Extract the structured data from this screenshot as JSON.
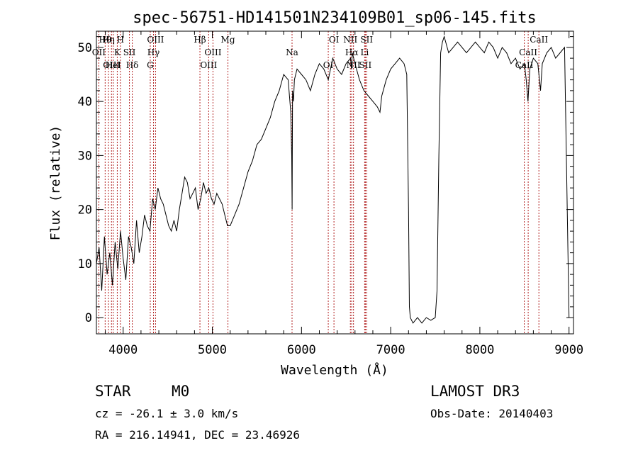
{
  "chart_data": {
    "type": "line",
    "title": "spec-56751-HD141501N234109B01_sp06-145.fits",
    "xlabel": "Wavelength (Å)",
    "ylabel": "Flux (relative)",
    "xlim": [
      3700,
      9050
    ],
    "ylim": [
      -3,
      53
    ],
    "xticks": [
      4000,
      5000,
      6000,
      7000,
      8000,
      9000
    ],
    "yticks": [
      0,
      10,
      20,
      30,
      40,
      50
    ],
    "grid": false,
    "series": [
      {
        "name": "spectrum",
        "x": [
          3700,
          3730,
          3760,
          3790,
          3820,
          3850,
          3880,
          3910,
          3940,
          3970,
          4000,
          4030,
          4060,
          4090,
          4120,
          4150,
          4180,
          4210,
          4240,
          4270,
          4300,
          4330,
          4360,
          4390,
          4420,
          4450,
          4480,
          4510,
          4540,
          4570,
          4600,
          4630,
          4660,
          4690,
          4720,
          4750,
          4780,
          4810,
          4840,
          4870,
          4900,
          4930,
          4960,
          4990,
          5020,
          5050,
          5080,
          5110,
          5140,
          5170,
          5200,
          5250,
          5300,
          5350,
          5400,
          5450,
          5500,
          5550,
          5600,
          5650,
          5700,
          5750,
          5800,
          5850,
          5880,
          5890,
          5895,
          5900,
          5910,
          5920,
          5950,
          6000,
          6050,
          6100,
          6150,
          6200,
          6250,
          6300,
          6350,
          6400,
          6450,
          6500,
          6550,
          6560,
          6570,
          6600,
          6650,
          6700,
          6750,
          6800,
          6850,
          6880,
          6900,
          6950,
          7000,
          7050,
          7100,
          7150,
          7180,
          7200,
          7210,
          7220,
          7250,
          7300,
          7350,
          7400,
          7450,
          7500,
          7520,
          7540,
          7560,
          7580,
          7600,
          7650,
          7700,
          7750,
          7800,
          7850,
          7900,
          7950,
          8000,
          8050,
          8100,
          8150,
          8200,
          8250,
          8300,
          8350,
          8400,
          8450,
          8500,
          8520,
          8540,
          8560,
          8600,
          8650,
          8680,
          8700,
          8750,
          8800,
          8850,
          8900,
          8950,
          9000
        ],
        "values": [
          10,
          13,
          5,
          15,
          8,
          12,
          6,
          14,
          9,
          16,
          11,
          7,
          15,
          13,
          10,
          18,
          12,
          15,
          19,
          17,
          16,
          22,
          20,
          24,
          22,
          21,
          19,
          17,
          16,
          18,
          16,
          20,
          23,
          26,
          25,
          22,
          23,
          24,
          20,
          22,
          25,
          23,
          24,
          22,
          21,
          23,
          22,
          21,
          19,
          17,
          17,
          19,
          21,
          24,
          27,
          29,
          32,
          33,
          35,
          37,
          40,
          42,
          45,
          44,
          38,
          30,
          20,
          42,
          40,
          44,
          46,
          45,
          44,
          42,
          45,
          47,
          46,
          44,
          48,
          46,
          45,
          47,
          48,
          46,
          49,
          47,
          44,
          42,
          41,
          40,
          39,
          38,
          41,
          44,
          46,
          47,
          48,
          47,
          45,
          20,
          2,
          0,
          -1,
          0,
          -1,
          0,
          -0.5,
          0,
          5,
          30,
          49,
          51,
          52,
          49,
          50,
          51,
          50,
          49,
          50,
          51,
          50,
          49,
          51,
          50,
          48,
          50,
          49,
          47,
          48,
          46,
          47,
          44,
          40,
          46,
          48,
          47,
          42,
          47,
          49,
          50,
          48,
          49,
          50,
          0
        ]
      }
    ],
    "line_markers": [
      {
        "label": "Hθ",
        "x": 3798
      },
      {
        "label": "OII",
        "x": 3727
      },
      {
        "label": "OIII",
        "x": 3869
      },
      {
        "label": "Hη",
        "x": 3835
      },
      {
        "label": "K",
        "x": 3934
      },
      {
        "label": "HeI",
        "x": 3889
      },
      {
        "label": "H",
        "x": 3969
      },
      {
        "label": "SII",
        "x": 4070
      },
      {
        "label": "Hδ",
        "x": 4102
      },
      {
        "label": "OIII",
        "x": 4363
      },
      {
        "label": "Hγ",
        "x": 4340
      },
      {
        "label": "G",
        "x": 4304
      },
      {
        "label": "Hβ",
        "x": 4861
      },
      {
        "label": "OIII",
        "x": 5007
      },
      {
        "label": "OIII",
        "x": 4959
      },
      {
        "label": "Mg",
        "x": 5175
      },
      {
        "label": "Na",
        "x": 5894
      },
      {
        "label": "OI",
        "x": 6300
      },
      {
        "label": "OI",
        "x": 6364
      },
      {
        "label": "Hα",
        "x": 6563
      },
      {
        "label": "SII",
        "x": 6716
      },
      {
        "label": "NII",
        "x": 6548
      },
      {
        "label": "Li",
        "x": 6708
      },
      {
        "label": "NII",
        "x": 6583
      },
      {
        "label": "SII",
        "x": 6731
      },
      {
        "label": "CaII",
        "x": 8542
      },
      {
        "label": "CaII",
        "x": 8498
      },
      {
        "label": "CaII",
        "x": 8662
      }
    ]
  },
  "info": {
    "object_type": "STAR",
    "subclass": "M0",
    "survey": "LAMOST DR3",
    "redshift_line": "cz = -26.1 ± 3.0 km/s",
    "obs_date_line": "Obs-Date: 20140403",
    "coords_line": "RA = 216.14941, DEC =  23.46926"
  },
  "colors": {
    "line": "#000000",
    "marker": "#b22222",
    "axis": "#000000",
    "background": "#ffffff"
  }
}
